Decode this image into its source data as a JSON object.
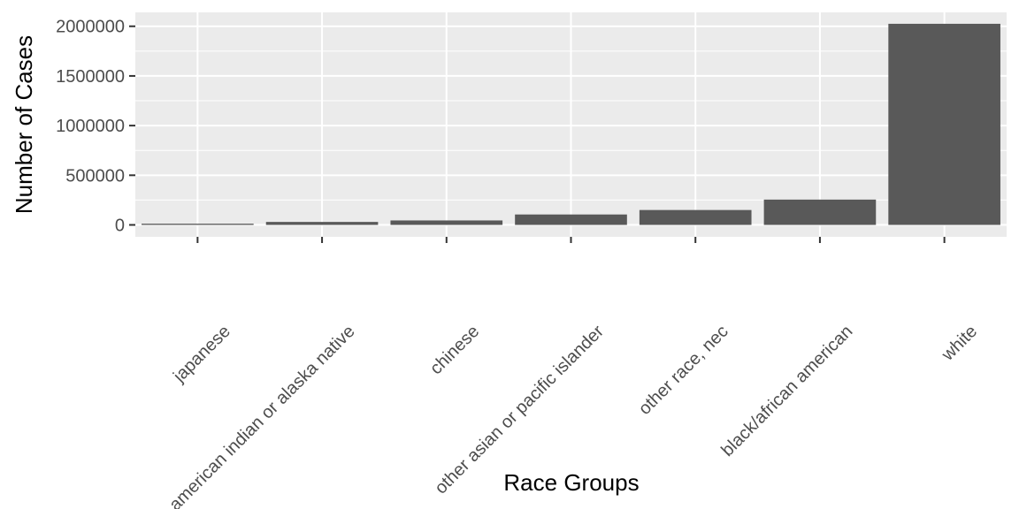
{
  "chart_data": {
    "type": "bar",
    "title": "",
    "xlabel": "Race Groups",
    "ylabel": "Number of Cases",
    "categories": [
      "japanese",
      "american indian or alaska native",
      "chinese",
      "other asian or pacific islander",
      "other race, nec",
      "black/african american",
      "white"
    ],
    "values": [
      12000,
      30000,
      45000,
      105000,
      150000,
      255000,
      2025000
    ],
    "ylim": [
      -120000,
      2140000
    ],
    "yticks": [
      0,
      500000,
      1000000,
      1500000,
      2000000
    ],
    "ytick_labels": [
      "0",
      "500000",
      "1000000",
      "1500000",
      "2000000"
    ],
    "grid": true,
    "legend": "none",
    "bar_color": "#595959",
    "panel_color": "#ebebeb",
    "grid_color": "#ffffff"
  }
}
